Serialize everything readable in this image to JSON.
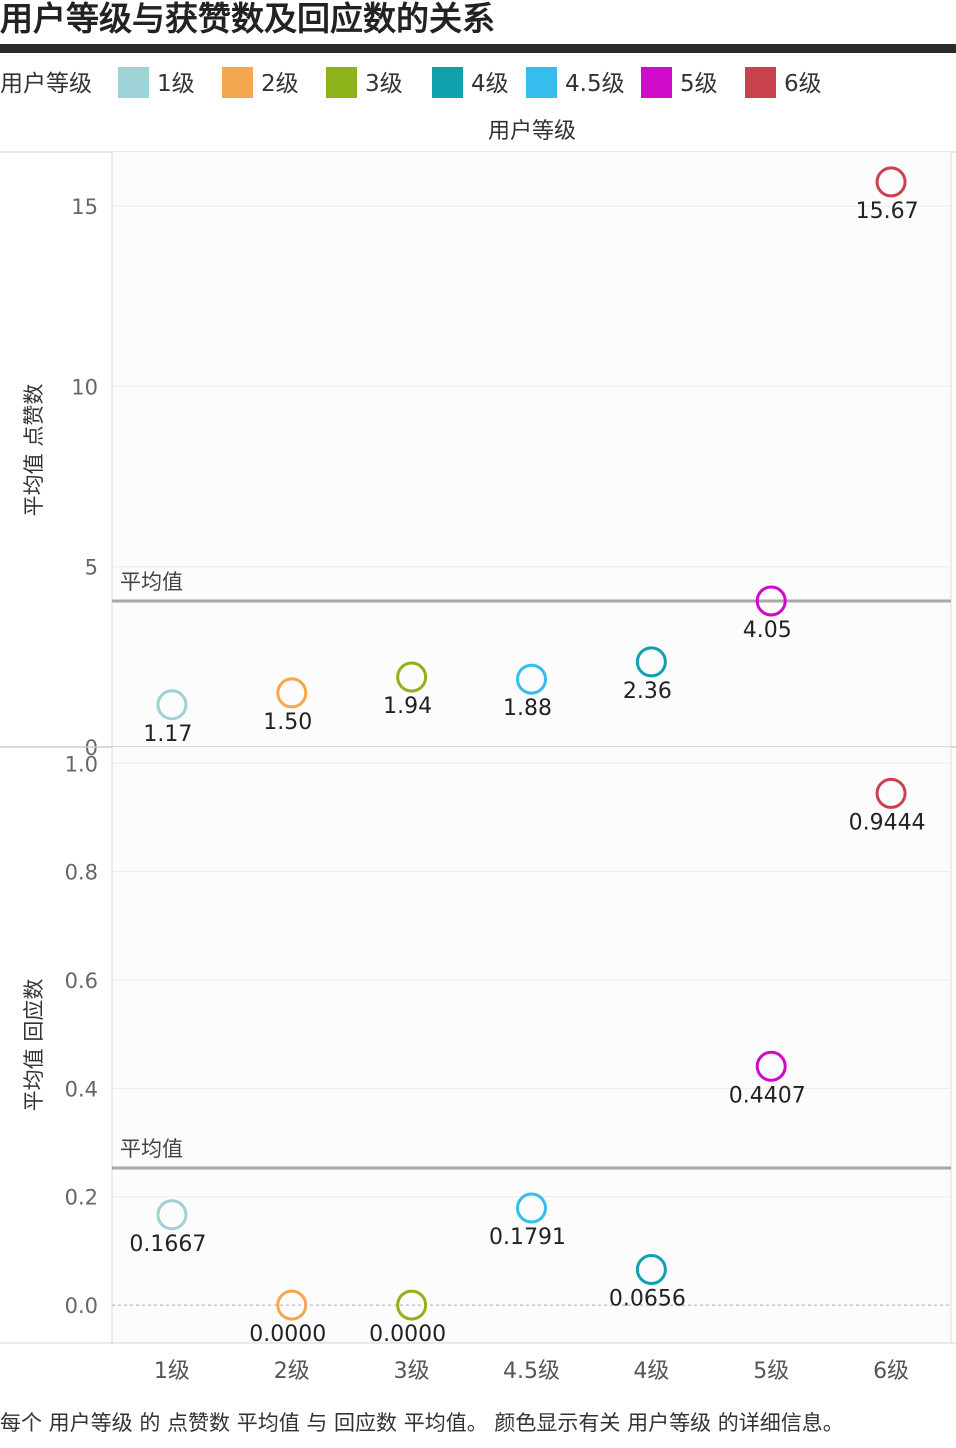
{
  "title": "用户等级与获赞数及回应数的关系",
  "legend": {
    "title": "用户等级",
    "items": [
      {
        "label": "1级",
        "color": "#9FD2D6"
      },
      {
        "label": "2级",
        "color": "#F5A74F"
      },
      {
        "label": "3级",
        "color": "#8EB21A"
      },
      {
        "label": "4级",
        "color": "#10A0AE"
      },
      {
        "label": "4.5级",
        "color": "#34BDED"
      },
      {
        "label": "5级",
        "color": "#CD0BC9"
      },
      {
        "label": "6级",
        "color": "#C9434F"
      }
    ]
  },
  "column_header": "用户等级",
  "footnote": "每个 用户等级 的 点赞数 平均值 与 回应数 平均值。 颜色显示有关 用户等级 的详细信息。",
  "chart_data": [
    {
      "type": "scatter",
      "ylabel": "平均值 点赞数",
      "categories": [
        "1级",
        "2级",
        "3级",
        "4.5级",
        "4级",
        "5级",
        "6级"
      ],
      "values": [
        1.17,
        1.5,
        1.94,
        1.88,
        2.36,
        4.05,
        15.67
      ],
      "value_labels": [
        "1.17",
        "1.50",
        "1.94",
        "1.88",
        "2.36",
        "4.05",
        "15.67"
      ],
      "colors": [
        "#9FD2D6",
        "#F5A74F",
        "#8EB21A",
        "#34BDED",
        "#10A0AE",
        "#CD0BC9",
        "#C9434F"
      ],
      "ylim": [
        0,
        16.5
      ],
      "yticks": [
        0,
        5,
        10,
        15
      ],
      "ytick_labels": [
        "0",
        "5",
        "10",
        "15"
      ],
      "reference_line": {
        "label": "平均值",
        "value": 4.05
      },
      "grid": true
    },
    {
      "type": "scatter",
      "ylabel": "平均值 回应数",
      "categories": [
        "1级",
        "2级",
        "3级",
        "4.5级",
        "4级",
        "5级",
        "6级"
      ],
      "values": [
        0.1667,
        0.0,
        0.0,
        0.1791,
        0.0656,
        0.4407,
        0.9444
      ],
      "value_labels": [
        "0.1667",
        "0.0000",
        "0.0000",
        "0.1791",
        "0.0656",
        "0.4407",
        "0.9444"
      ],
      "colors": [
        "#9FD2D6",
        "#F5A74F",
        "#8EB21A",
        "#34BDED",
        "#10A0AE",
        "#CD0BC9",
        "#C9434F"
      ],
      "ylim": [
        -0.07,
        1.03
      ],
      "yticks": [
        0.0,
        0.2,
        0.4,
        0.6,
        0.8,
        1.0
      ],
      "ytick_labels": [
        "0.0",
        "0.2",
        "0.4",
        "0.6",
        "0.8",
        "1.0"
      ],
      "reference_line": {
        "label": "平均值",
        "value": 0.253
      },
      "grid": true
    }
  ]
}
